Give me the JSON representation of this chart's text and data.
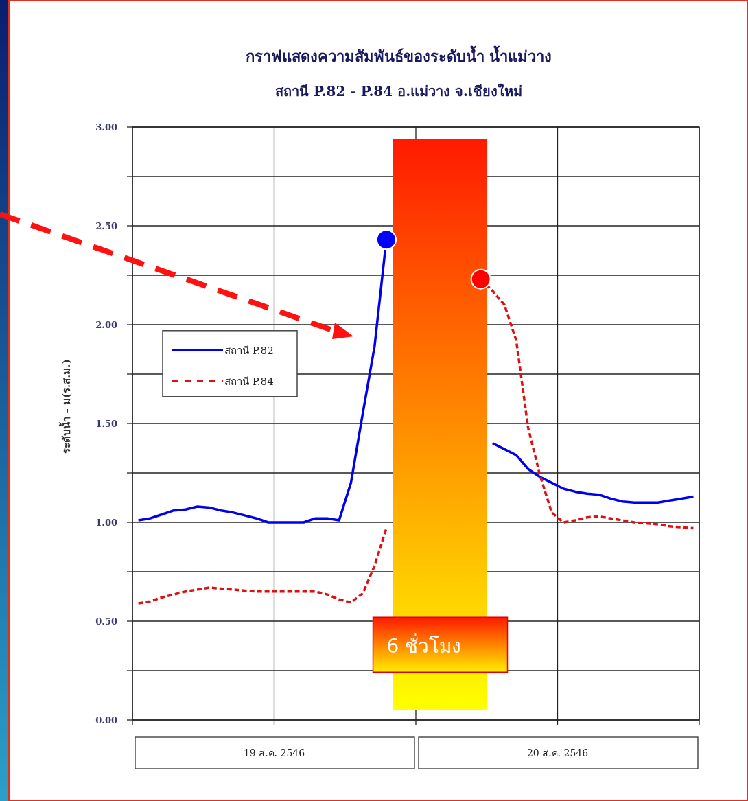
{
  "chart_data": {
    "type": "line",
    "title": "กราฟแสดงความสัมพันธ์ของระดับน้ำ น้ำแม่วาง",
    "subtitle": "สถานี P.82 - P.84 อ.แม่วาง จ.เชียงใหม่",
    "ylabel": "ระดับน้ำ - ม(ร.ส.ม.)",
    "annotations": [
      "19 ส.ค. 2546",
      "20 ส.ค. 2546",
      "6 ชั่วโมง"
    ],
    "categories": [
      null,
      null,
      null,
      null,
      null,
      null,
      null,
      null,
      null,
      null,
      null,
      null,
      null,
      null,
      null,
      null,
      null,
      null,
      null,
      null,
      null,
      null,
      null,
      null,
      null,
      null,
      null,
      null,
      null,
      null,
      null,
      null,
      null,
      null,
      null,
      null,
      null,
      null,
      null,
      null,
      null,
      null,
      null,
      null,
      null,
      null,
      null,
      null
    ],
    "ylim": [
      0,
      3
    ],
    "yticks": [
      {
        "value": 0,
        "label": "0.00"
      },
      {
        "value": 0.25,
        "label": null
      },
      {
        "value": 0.5,
        "label": "0.50"
      },
      {
        "value": 0.75,
        "label": null
      },
      {
        "value": 1,
        "label": "1.00"
      },
      {
        "value": 1.25,
        "label": null
      },
      {
        "value": 1.5,
        "label": "1.50"
      },
      {
        "value": 1.75,
        "label": null
      },
      {
        "value": 2,
        "label": "2.00"
      },
      {
        "value": 2.25,
        "label": null
      },
      {
        "value": 2.5,
        "label": "2.50"
      },
      {
        "value": 2.75,
        "label": null
      },
      {
        "value": 3,
        "label": "3.00"
      }
    ],
    "grid": true,
    "legend": "top left",
    "series": [
      {
        "name": "สถานี P.82",
        "color": "#0000ee",
        "line_style": "solid",
        "values": [
          1.01,
          1.02,
          1.04,
          1.06,
          1.065,
          1.08,
          1.075,
          1.06,
          1.05,
          1.035,
          1.02,
          1.0,
          1.0,
          1.0,
          1.0,
          1.02,
          1.02,
          1.01,
          1.2,
          1.55,
          1.89,
          2.43,
          null,
          null,
          null,
          null,
          null,
          null,
          null,
          null,
          1.4,
          1.37,
          1.34,
          1.27,
          1.23,
          1.2,
          1.17,
          1.155,
          1.145,
          1.14,
          1.12,
          1.105,
          1.1,
          1.1,
          1.1,
          1.11,
          1.12,
          1.13
        ]
      },
      {
        "name": "สถานี P.84",
        "color": "#dd1111",
        "line_style": "dashed",
        "values": [
          0.59,
          0.6,
          0.62,
          0.635,
          0.65,
          0.66,
          0.67,
          0.665,
          0.66,
          0.655,
          0.65,
          0.65,
          0.65,
          0.65,
          0.65,
          0.65,
          0.635,
          0.61,
          0.595,
          0.64,
          0.78,
          0.97,
          null,
          null,
          null,
          null,
          null,
          null,
          null,
          2.23,
          2.17,
          2.1,
          1.92,
          1.48,
          1.24,
          1.05,
          1.0,
          1.01,
          1.025,
          1.03,
          1.02,
          1.01,
          1.0,
          0.995,
          0.99,
          0.98,
          0.975,
          0.97
        ]
      },
      {
        "type": "scatter",
        "color": "#0000ff",
        "marker": "circle",
        "values": [
          null,
          null,
          null,
          null,
          null,
          null,
          null,
          null,
          null,
          null,
          null,
          null,
          null,
          null,
          null,
          null,
          null,
          null,
          null,
          null,
          null,
          2.43,
          null,
          null,
          null,
          null,
          null,
          null,
          null,
          null,
          null,
          null,
          null,
          null,
          null,
          null,
          null,
          null,
          null,
          null,
          null,
          null,
          null,
          null,
          null,
          null,
          null,
          null
        ]
      },
      {
        "type": "scatter",
        "color": "#ff0000",
        "marker": "circle",
        "values": [
          null,
          null,
          null,
          null,
          null,
          null,
          null,
          null,
          null,
          null,
          null,
          null,
          null,
          null,
          null,
          null,
          null,
          null,
          null,
          null,
          null,
          null,
          null,
          null,
          null,
          null,
          null,
          null,
          null,
          2.23,
          null,
          null,
          null,
          null,
          null,
          null,
          null,
          null,
          null,
          null,
          null,
          null,
          null,
          null,
          null,
          null,
          null,
          null
        ]
      }
    ]
  }
}
